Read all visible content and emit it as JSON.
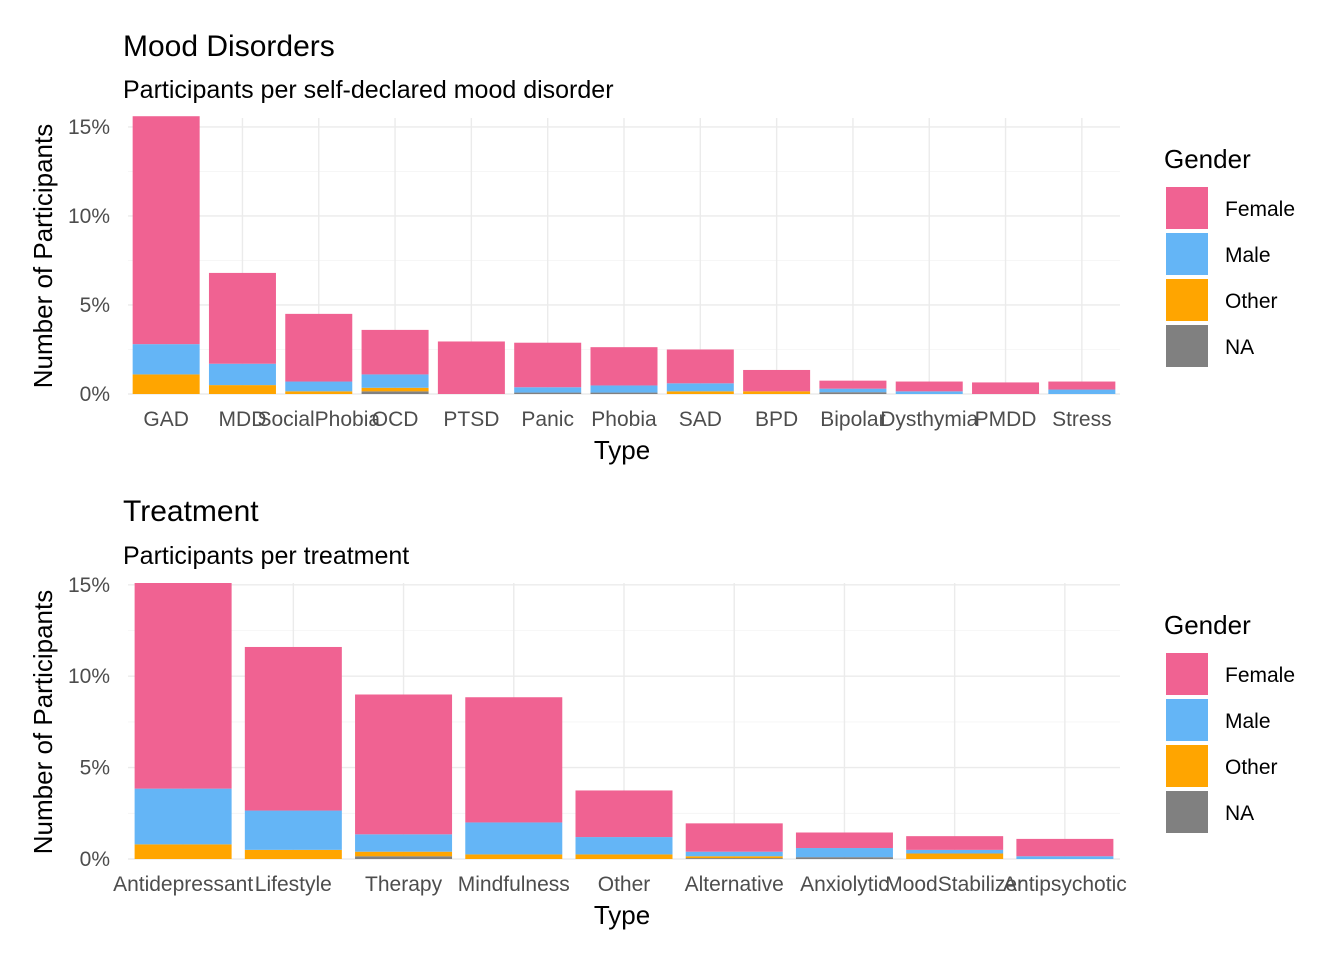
{
  "chart_data": [
    {
      "type": "bar",
      "stacked": true,
      "title": "Mood Disorders",
      "subtitle": "Participants per self-declared mood disorder",
      "xlabel": "Type",
      "ylabel": "Number of Participants",
      "ylim": [
        0,
        15.5
      ],
      "yticks": [
        0,
        5,
        10,
        15
      ],
      "ytick_labels": [
        "0%",
        "5%",
        "10%",
        "15%"
      ],
      "categories": [
        "GAD",
        "MDD",
        "SocialPhobia",
        "OCD",
        "PTSD",
        "Panic",
        "Phobia",
        "SAD",
        "BPD",
        "Bipolar",
        "Dysthymia",
        "PMDD",
        "Stress"
      ],
      "series": [
        {
          "name": "NA",
          "values": [
            0,
            0,
            0,
            0.15,
            0,
            0.08,
            0.08,
            0,
            0,
            0.1,
            0,
            0,
            0
          ]
        },
        {
          "name": "Other",
          "values": [
            1.1,
            0.5,
            0.15,
            0.2,
            0,
            0,
            0,
            0.15,
            0.15,
            0,
            0,
            0,
            0
          ]
        },
        {
          "name": "Male",
          "values": [
            1.7,
            1.2,
            0.55,
            0.75,
            0,
            0.3,
            0.4,
            0.45,
            0,
            0.2,
            0.15,
            0,
            0.25
          ]
        },
        {
          "name": "Female",
          "values": [
            12.8,
            5.1,
            3.8,
            2.5,
            2.95,
            2.5,
            2.15,
            1.9,
            1.2,
            0.45,
            0.55,
            0.65,
            0.45
          ]
        }
      ],
      "legend": {
        "title": "Gender",
        "entries": [
          "Female",
          "Male",
          "Other",
          "NA"
        ],
        "position": "right"
      },
      "colors": {
        "Female": "#f06292",
        "Male": "#64b5f6",
        "Other": "#ffa500",
        "NA": "#808080"
      },
      "grid": true
    },
    {
      "type": "bar",
      "stacked": true,
      "title": "Treatment",
      "subtitle": "Participants per treatment",
      "xlabel": "Type",
      "ylabel": "Number of Participants",
      "ylim": [
        0,
        15.1
      ],
      "yticks": [
        0,
        5,
        10,
        15
      ],
      "ytick_labels": [
        "0%",
        "5%",
        "10%",
        "15%"
      ],
      "categories": [
        "Antidepressant",
        "Lifestyle",
        "Therapy",
        "Mindfulness",
        "Other",
        "Alternative",
        "Anxiolytic",
        "MoodStabilizer",
        "Antipsychotic"
      ],
      "series": [
        {
          "name": "NA",
          "values": [
            0,
            0,
            0.15,
            0,
            0,
            0.05,
            0.1,
            0,
            0
          ]
        },
        {
          "name": "Other",
          "values": [
            0.8,
            0.5,
            0.25,
            0.25,
            0.25,
            0.1,
            0,
            0.3,
            0
          ]
        },
        {
          "name": "Male",
          "values": [
            3.05,
            2.15,
            0.95,
            1.75,
            0.95,
            0.25,
            0.5,
            0.2,
            0.15
          ]
        },
        {
          "name": "Female",
          "values": [
            11.25,
            8.95,
            7.65,
            6.85,
            2.55,
            1.55,
            0.85,
            0.75,
            0.95
          ]
        }
      ],
      "legend": {
        "title": "Gender",
        "entries": [
          "Female",
          "Male",
          "Other",
          "NA"
        ],
        "position": "right"
      },
      "colors": {
        "Female": "#f06292",
        "Male": "#64b5f6",
        "Other": "#ffa500",
        "NA": "#808080"
      },
      "grid": true
    }
  ]
}
